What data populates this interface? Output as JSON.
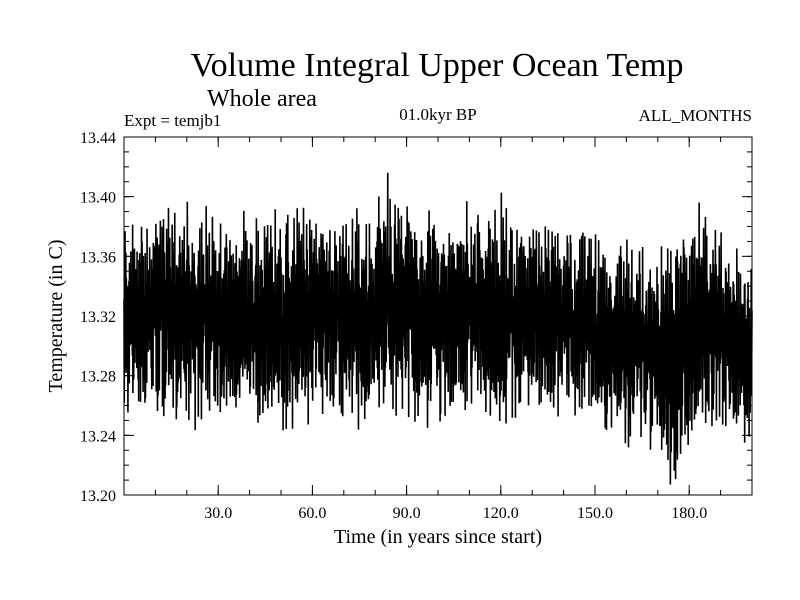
{
  "chart_data": {
    "type": "line",
    "title": "Volume Integral Upper Ocean Temp",
    "subtitle": "Whole area",
    "experiment_label": "Expt = temjb1",
    "period_label": "01.0kyr BP",
    "months_label": "ALL_MONTHS",
    "xlabel": "Time (in years since start)",
    "ylabel": "Temperature (in C)",
    "xlim": [
      0,
      200
    ],
    "ylim": [
      13.2,
      13.44
    ],
    "x_ticks": [
      30,
      60,
      90,
      120,
      150,
      180
    ],
    "x_tick_labels": [
      "30.0",
      "60.0",
      "90.0",
      "120.0",
      "150.0",
      "180.0"
    ],
    "y_ticks": [
      13.2,
      13.24,
      13.28,
      13.32,
      13.36,
      13.4,
      13.44
    ],
    "y_tick_labels": [
      "13.20",
      "13.24",
      "13.28",
      "13.32",
      "13.36",
      "13.40",
      "13.44"
    ],
    "grid": false,
    "series": [
      {
        "name": "Volume Integral Upper Ocean Temp (monthly)",
        "sampling": "monthly",
        "envelope_x": [
          0,
          10,
          20,
          30,
          40,
          50,
          60,
          70,
          80,
          85,
          90,
          100,
          110,
          120,
          130,
          140,
          150,
          160,
          170,
          175,
          180,
          185,
          190,
          200
        ],
        "envelope_max": [
          13.39,
          13.405,
          13.4,
          13.4,
          13.39,
          13.395,
          13.395,
          13.395,
          13.4,
          13.415,
          13.4,
          13.39,
          13.4,
          13.405,
          13.4,
          13.39,
          13.38,
          13.375,
          13.37,
          13.37,
          13.39,
          13.405,
          13.385,
          13.36
        ],
        "envelope_min": [
          13.245,
          13.245,
          13.24,
          13.245,
          13.245,
          13.24,
          13.245,
          13.245,
          13.24,
          13.245,
          13.25,
          13.24,
          13.25,
          13.24,
          13.245,
          13.24,
          13.235,
          13.23,
          13.225,
          13.205,
          13.225,
          13.23,
          13.235,
          13.22
        ],
        "global_max": {
          "x": 84,
          "y": 13.416
        },
        "global_min": {
          "x": 174,
          "y": 13.207
        }
      }
    ]
  }
}
